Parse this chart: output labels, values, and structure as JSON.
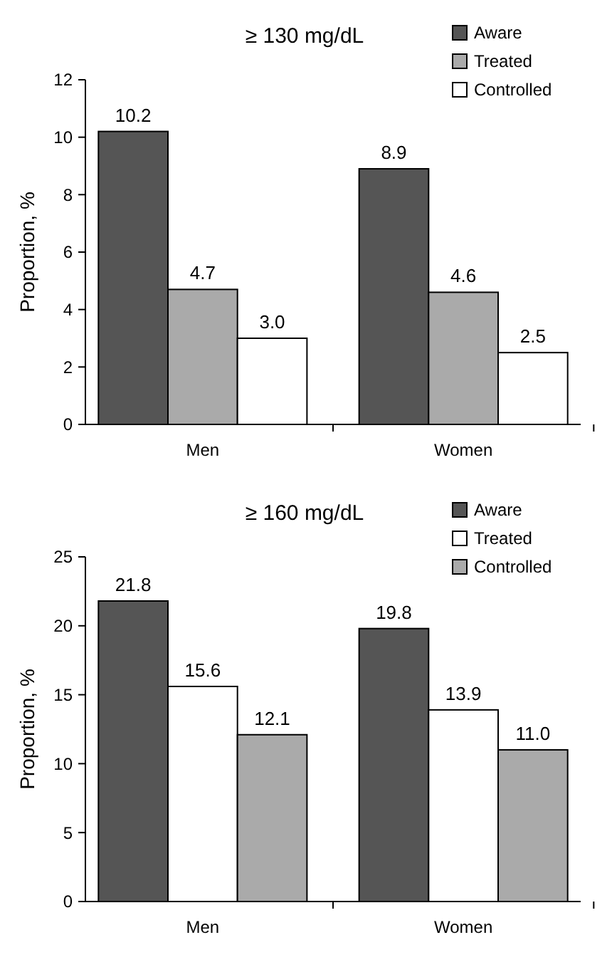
{
  "chart_data": [
    {
      "type": "bar",
      "title": "≥ 130 mg/dL",
      "ylabel": "Proportion, %",
      "categories": [
        "Men",
        "Women"
      ],
      "series": [
        {
          "name": "Aware",
          "color": "#555555",
          "values": [
            10.2,
            8.9
          ]
        },
        {
          "name": "Treated",
          "color": "#aaaaaa",
          "values": [
            4.7,
            4.6
          ]
        },
        {
          "name": "Controlled",
          "color": "#ffffff",
          "values": [
            3.0,
            2.5
          ]
        }
      ],
      "value_labels": [
        [
          "10.2",
          "8.9"
        ],
        [
          "4.7",
          "4.6"
        ],
        [
          "3.0",
          "2.5"
        ]
      ],
      "ylim": [
        0,
        12
      ],
      "yticks": [
        0,
        2,
        4,
        6,
        8,
        10,
        12
      ],
      "legend": "top right"
    },
    {
      "type": "bar",
      "title": "≥ 160 mg/dL",
      "ylabel": "Proportion, %",
      "categories": [
        "Men",
        "Women"
      ],
      "series": [
        {
          "name": "Aware",
          "color": "#555555",
          "values": [
            21.8,
            19.8
          ]
        },
        {
          "name": "Treated",
          "color": "#ffffff",
          "values": [
            15.6,
            13.9
          ]
        },
        {
          "name": "Controlled",
          "color": "#aaaaaa",
          "values": [
            12.1,
            11.0
          ]
        }
      ],
      "value_labels": [
        [
          "21.8",
          "19.8"
        ],
        [
          "15.6",
          "13.9"
        ],
        [
          "12.1",
          "11.0"
        ]
      ],
      "ylim": [
        0,
        25
      ],
      "yticks": [
        0,
        5,
        10,
        15,
        20,
        25
      ],
      "legend": "top right"
    }
  ]
}
